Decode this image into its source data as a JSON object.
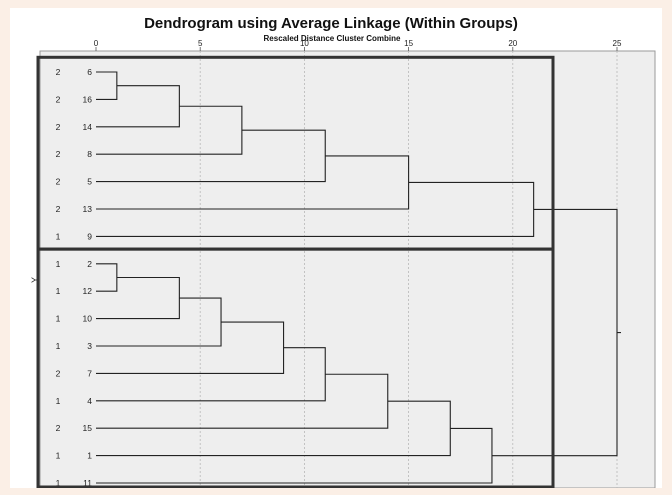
{
  "chart_data": {
    "type": "dendrogram",
    "title": "Dendrogram using Average Linkage (Within Groups)",
    "subtitle": "Rescaled Distance Cluster Combine",
    "ylabel": "Y",
    "xlim": [
      0,
      25
    ],
    "x_ticks": [
      "0",
      "5",
      "10",
      "15",
      "20",
      "25"
    ],
    "grid": true,
    "leaves": [
      {
        "case": "6",
        "group": "2"
      },
      {
        "case": "16",
        "group": "2"
      },
      {
        "case": "14",
        "group": "2"
      },
      {
        "case": "8",
        "group": "2"
      },
      {
        "case": "5",
        "group": "2"
      },
      {
        "case": "13",
        "group": "2"
      },
      {
        "case": "9",
        "group": "1"
      },
      {
        "case": "2",
        "group": "1"
      },
      {
        "case": "12",
        "group": "1"
      },
      {
        "case": "10",
        "group": "1"
      },
      {
        "case": "3",
        "group": "1"
      },
      {
        "case": "7",
        "group": "2"
      },
      {
        "case": "4",
        "group": "1"
      },
      {
        "case": "15",
        "group": "2"
      },
      {
        "case": "1",
        "group": "1"
      },
      {
        "case": "11",
        "group": "1"
      }
    ],
    "merges": [
      {
        "left": "L0",
        "right": "L1",
        "distance": 1
      },
      {
        "left": "M0",
        "right": "L2",
        "distance": 4
      },
      {
        "left": "M1",
        "right": "L3",
        "distance": 7
      },
      {
        "left": "M2",
        "right": "L4",
        "distance": 11
      },
      {
        "left": "M3",
        "right": "L5",
        "distance": 15
      },
      {
        "left": "M4",
        "right": "L6",
        "distance": 21
      },
      {
        "left": "L7",
        "right": "L8",
        "distance": 1
      },
      {
        "left": "M6",
        "right": "L9",
        "distance": 4
      },
      {
        "left": "M7",
        "right": "L10",
        "distance": 6
      },
      {
        "left": "M8",
        "right": "L11",
        "distance": 9
      },
      {
        "left": "M9",
        "right": "L12",
        "distance": 11
      },
      {
        "left": "M10",
        "right": "L13",
        "distance": 14
      },
      {
        "left": "M11",
        "right": "L14",
        "distance": 17
      },
      {
        "left": "M12",
        "right": "L15",
        "distance": 19
      },
      {
        "left": "M5",
        "right": "M13",
        "distance": 25
      }
    ],
    "highlighted_clusters": [
      {
        "first_leaf": 0,
        "last_leaf": 6
      },
      {
        "first_leaf": 7,
        "last_leaf": 15
      }
    ],
    "colors": {
      "plot_background": "#eeeeee",
      "line": "#222222",
      "highlight": "#333333",
      "grid": "#b8b8b8"
    }
  }
}
